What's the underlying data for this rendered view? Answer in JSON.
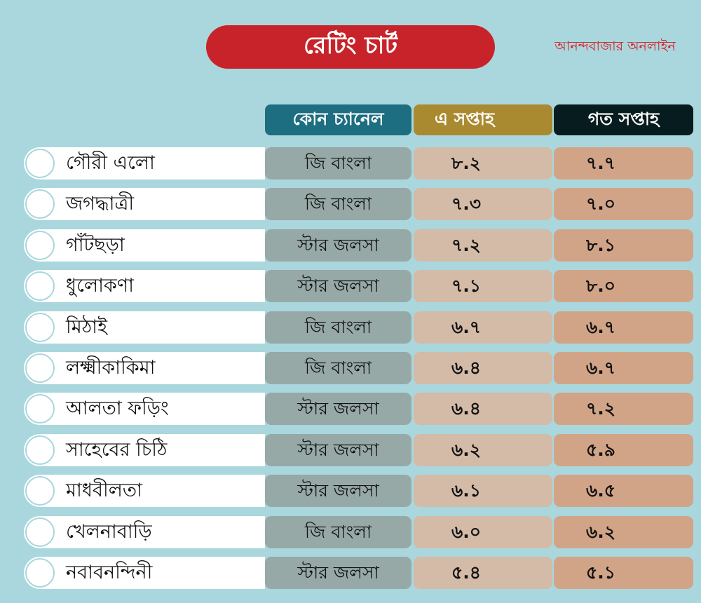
{
  "title": "রেটিং চার্ট",
  "brand": "আনন্দবাজার অনলাইন",
  "colors": {
    "background": "#a9d7dd",
    "title_bg": "#c8232a",
    "channel_header": "#1c6e80",
    "this_week_header": "#a98a30",
    "last_week_header": "#071c1e",
    "channel_cell": "#96a9a6",
    "this_week_cell": "#d3bba8",
    "last_week_cell": "#d2a487"
  },
  "chart_data": {
    "type": "table",
    "columns": [
      "কোন চ্যানেল",
      "এ সপ্তাহ",
      "গত সপ্তাহ"
    ],
    "rows": [
      {
        "name": "গৌরী এলো",
        "channel": "জি বাংলা",
        "this_week": "৮.২",
        "last_week": "৭.৭"
      },
      {
        "name": "জগদ্ধাত্রী",
        "channel": "জি বাংলা",
        "this_week": "৭.৩",
        "last_week": "৭.০"
      },
      {
        "name": "গাঁটছড়া",
        "channel": "স্টার জলসা",
        "this_week": "৭.২",
        "last_week": "৮.১"
      },
      {
        "name": "ধুলোকণা",
        "channel": "স্টার জলসা",
        "this_week": "৭.১",
        "last_week": "৮.০"
      },
      {
        "name": "মিঠাই",
        "channel": "জি বাংলা",
        "this_week": "৬.৭",
        "last_week": "৬.৭"
      },
      {
        "name": "লক্ষ্মীকাকিমা",
        "channel": "জি বাংলা",
        "this_week": "৬.৪",
        "last_week": "৬.৭"
      },
      {
        "name": "আলতা ফড়িং",
        "channel": "স্টার জলসা",
        "this_week": "৬.৪",
        "last_week": "৭.২"
      },
      {
        "name": "সাহেবের চিঠি",
        "channel": "স্টার জলসা",
        "this_week": "৬.২",
        "last_week": "৫.৯"
      },
      {
        "name": "মাধবীলতা",
        "channel": "স্টার জলসা",
        "this_week": "৬.১",
        "last_week": "৬.৫"
      },
      {
        "name": "খেলনাবাড়ি",
        "channel": "জি বাংলা",
        "this_week": "৬.০",
        "last_week": "৬.২"
      },
      {
        "name": "নবাবনন্দিনী",
        "channel": "স্টার জলসা",
        "this_week": "৫.৪",
        "last_week": "৫.১"
      }
    ]
  }
}
